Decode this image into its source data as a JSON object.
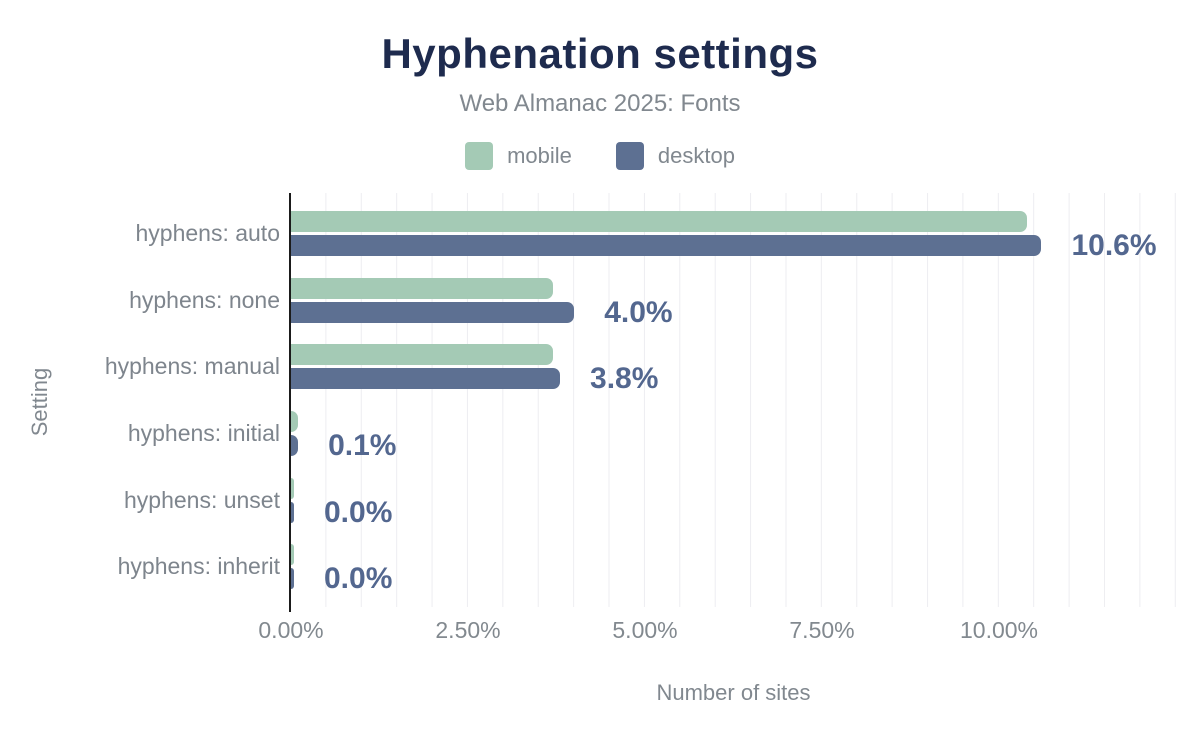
{
  "header": {
    "title": "Hyphenation settings",
    "subtitle": "Web Almanac 2025: Fonts"
  },
  "legend": [
    {
      "label": "mobile",
      "color": "#a4cab5"
    },
    {
      "label": "desktop",
      "color": "#5d7092"
    }
  ],
  "chart_data": {
    "type": "bar",
    "orientation": "horizontal",
    "title": "Hyphenation settings",
    "subtitle": "Web Almanac 2025: Fonts",
    "categories": [
      "hyphens: auto",
      "hyphens: none",
      "hyphens: manual",
      "hyphens: initial",
      "hyphens: unset",
      "hyphens: inherit"
    ],
    "series": [
      {
        "name": "mobile",
        "color": "#a4cab5",
        "values": [
          10.4,
          3.7,
          3.7,
          0.1,
          0.0,
          0.0
        ]
      },
      {
        "name": "desktop",
        "color": "#5d7092",
        "values": [
          10.6,
          4.0,
          3.8,
          0.1,
          0.0,
          0.0
        ]
      }
    ],
    "value_labels": [
      "10.6%",
      "4.0%",
      "3.8%",
      "0.1%",
      "0.0%",
      "0.0%"
    ],
    "xlabel": "Number of sites",
    "ylabel": "Setting",
    "xlim": [
      0,
      12.5
    ],
    "x_ticks": [
      {
        "value": 0,
        "label": "0.00%"
      },
      {
        "value": 2.5,
        "label": "2.50%"
      },
      {
        "value": 5,
        "label": "5.00%"
      },
      {
        "value": 7.5,
        "label": "7.50%"
      },
      {
        "value": 10,
        "label": "10.00%"
      }
    ],
    "grid_step": 0.5,
    "grid": true,
    "legend_position": "top",
    "colors": {
      "title": "#1e2b4e",
      "secondary_text": "#81888f",
      "value_label": "#53678f",
      "gridline": "#ededf1",
      "axis_line": "#1b1b1b",
      "background": "#ffffff"
    }
  }
}
